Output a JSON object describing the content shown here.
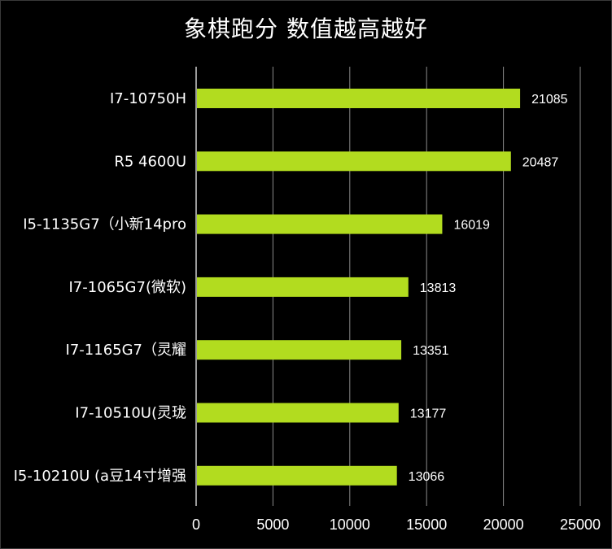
{
  "chart_data": {
    "type": "bar",
    "orientation": "horizontal",
    "title": "象棋跑分 数值越高越好",
    "categories": [
      "I7-10750H",
      "R5 4600U",
      "I5-1135G7（小新14pro",
      "I7-1065G7(微软)",
      "I7-1165G7（灵耀",
      "I7-10510U(灵珑",
      "I5-10210U (a豆14寸增强"
    ],
    "values": [
      21085,
      20487,
      16019,
      13813,
      13351,
      13177,
      13066
    ],
    "xlim": [
      0,
      25000
    ],
    "xticks": [
      0,
      5000,
      10000,
      15000,
      20000,
      25000
    ],
    "grid": true,
    "bar_color": "#b2dc1f",
    "grid_color": "#8a8a8a",
    "background": "#000000",
    "text_color": "#ffffff"
  }
}
